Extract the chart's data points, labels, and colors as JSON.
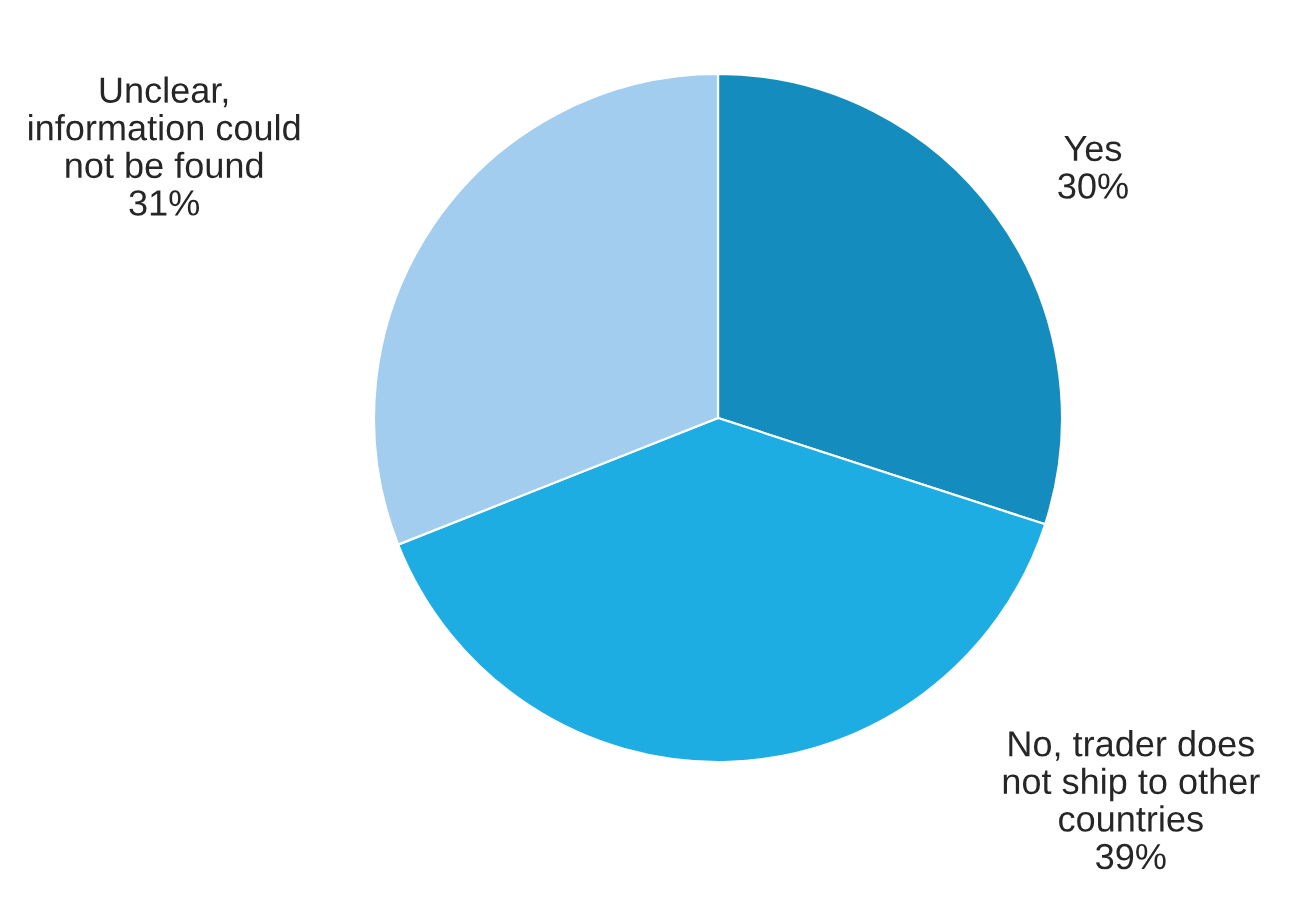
{
  "chart_data": {
    "type": "pie",
    "categories": [
      "Yes",
      "No, trader does\nnot ship to other\ncountries",
      "Unclear,\ninformation could\nnot be found"
    ],
    "values": [
      30,
      39,
      31
    ],
    "colors": [
      "#148cbe",
      "#1eade3",
      "#a3cdee"
    ],
    "value_labels": [
      "30%",
      "39%",
      "31%"
    ],
    "legend": false
  }
}
